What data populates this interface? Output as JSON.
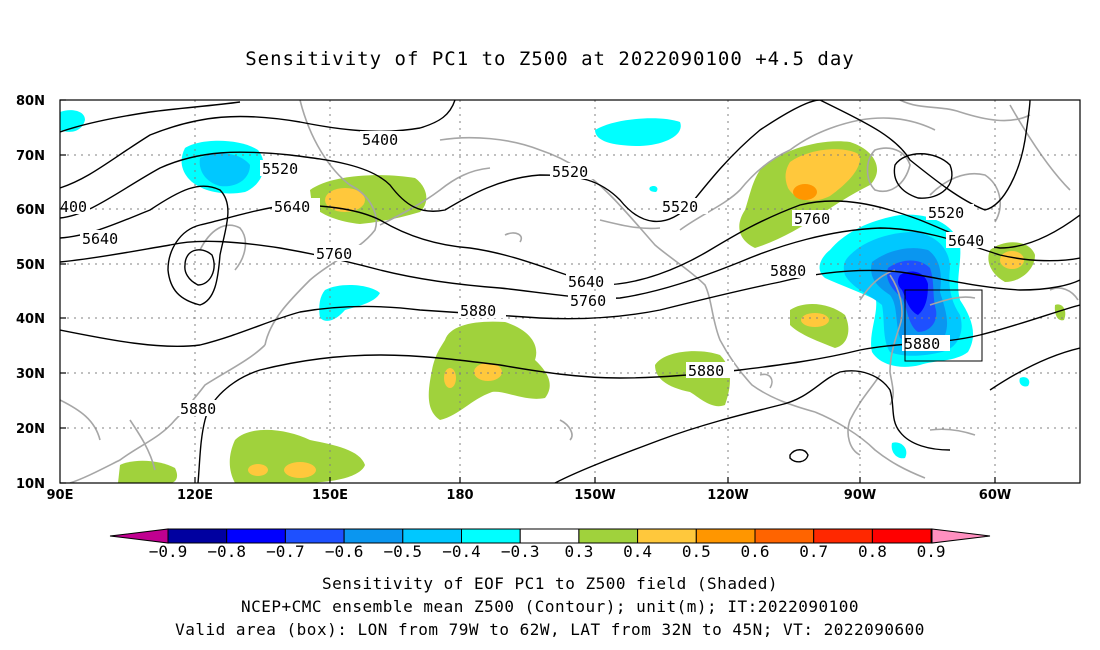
{
  "title": "Sensitivity of PC1 to Z500 at 2022090100 +4.5 day",
  "axes": {
    "lat_labels": [
      "80N",
      "70N",
      "60N",
      "50N",
      "40N",
      "30N",
      "20N",
      "10N"
    ],
    "lon_labels": [
      "90E",
      "120E",
      "150E",
      "180",
      "150W",
      "120W",
      "90W",
      "60W"
    ]
  },
  "contour_labels": [
    {
      "key": "c5400a",
      "text": "5400"
    },
    {
      "key": "c400",
      "text": "400"
    },
    {
      "key": "c5520a",
      "text": "5520"
    },
    {
      "key": "c5520b",
      "text": "5520"
    },
    {
      "key": "c5520c",
      "text": "5520"
    },
    {
      "key": "c5520d",
      "text": "5520"
    },
    {
      "key": "c5640a",
      "text": "5640"
    },
    {
      "key": "c5640b",
      "text": "5640"
    },
    {
      "key": "c5640c",
      "text": "5640"
    },
    {
      "key": "c5640d",
      "text": "5640"
    },
    {
      "key": "c5760a",
      "text": "5760"
    },
    {
      "key": "c5760b",
      "text": "5760"
    },
    {
      "key": "c5760c",
      "text": "5760"
    },
    {
      "key": "c5880a",
      "text": "5880"
    },
    {
      "key": "c5880b",
      "text": "5880"
    },
    {
      "key": "c5880c",
      "text": "5880"
    },
    {
      "key": "c5880d",
      "text": "5880"
    },
    {
      "key": "c5880e",
      "text": "5880"
    }
  ],
  "colorbar": {
    "labels": [
      "−0.9",
      "−0.8",
      "−0.7",
      "−0.6",
      "−0.5",
      "−0.4",
      "−0.3",
      "0.3",
      "0.4",
      "0.5",
      "0.6",
      "0.7",
      "0.8",
      "0.9"
    ],
    "colors": [
      "#0000a0",
      "#0000ff",
      "#1e50ff",
      "#0a96f0",
      "#00c8ff",
      "#00ffff",
      "#ffffff",
      "#a0d23c",
      "#ffc83c",
      "#ff9600",
      "#ff6400",
      "#ff2800",
      "#ff0000"
    ],
    "low_extreme": "#c00090",
    "high_extreme": "#ff90c0"
  },
  "captions": {
    "line1": "Sensitivity of EOF PC1 to Z500 field (Shaded)",
    "line2": "NCEP+CMC ensemble mean Z500 (Contour); unit(m); IT:2022090100",
    "line3": "Valid area (box): LON from 79W to 62W, LAT from 32N to 45N; VT: 2022090600"
  }
}
